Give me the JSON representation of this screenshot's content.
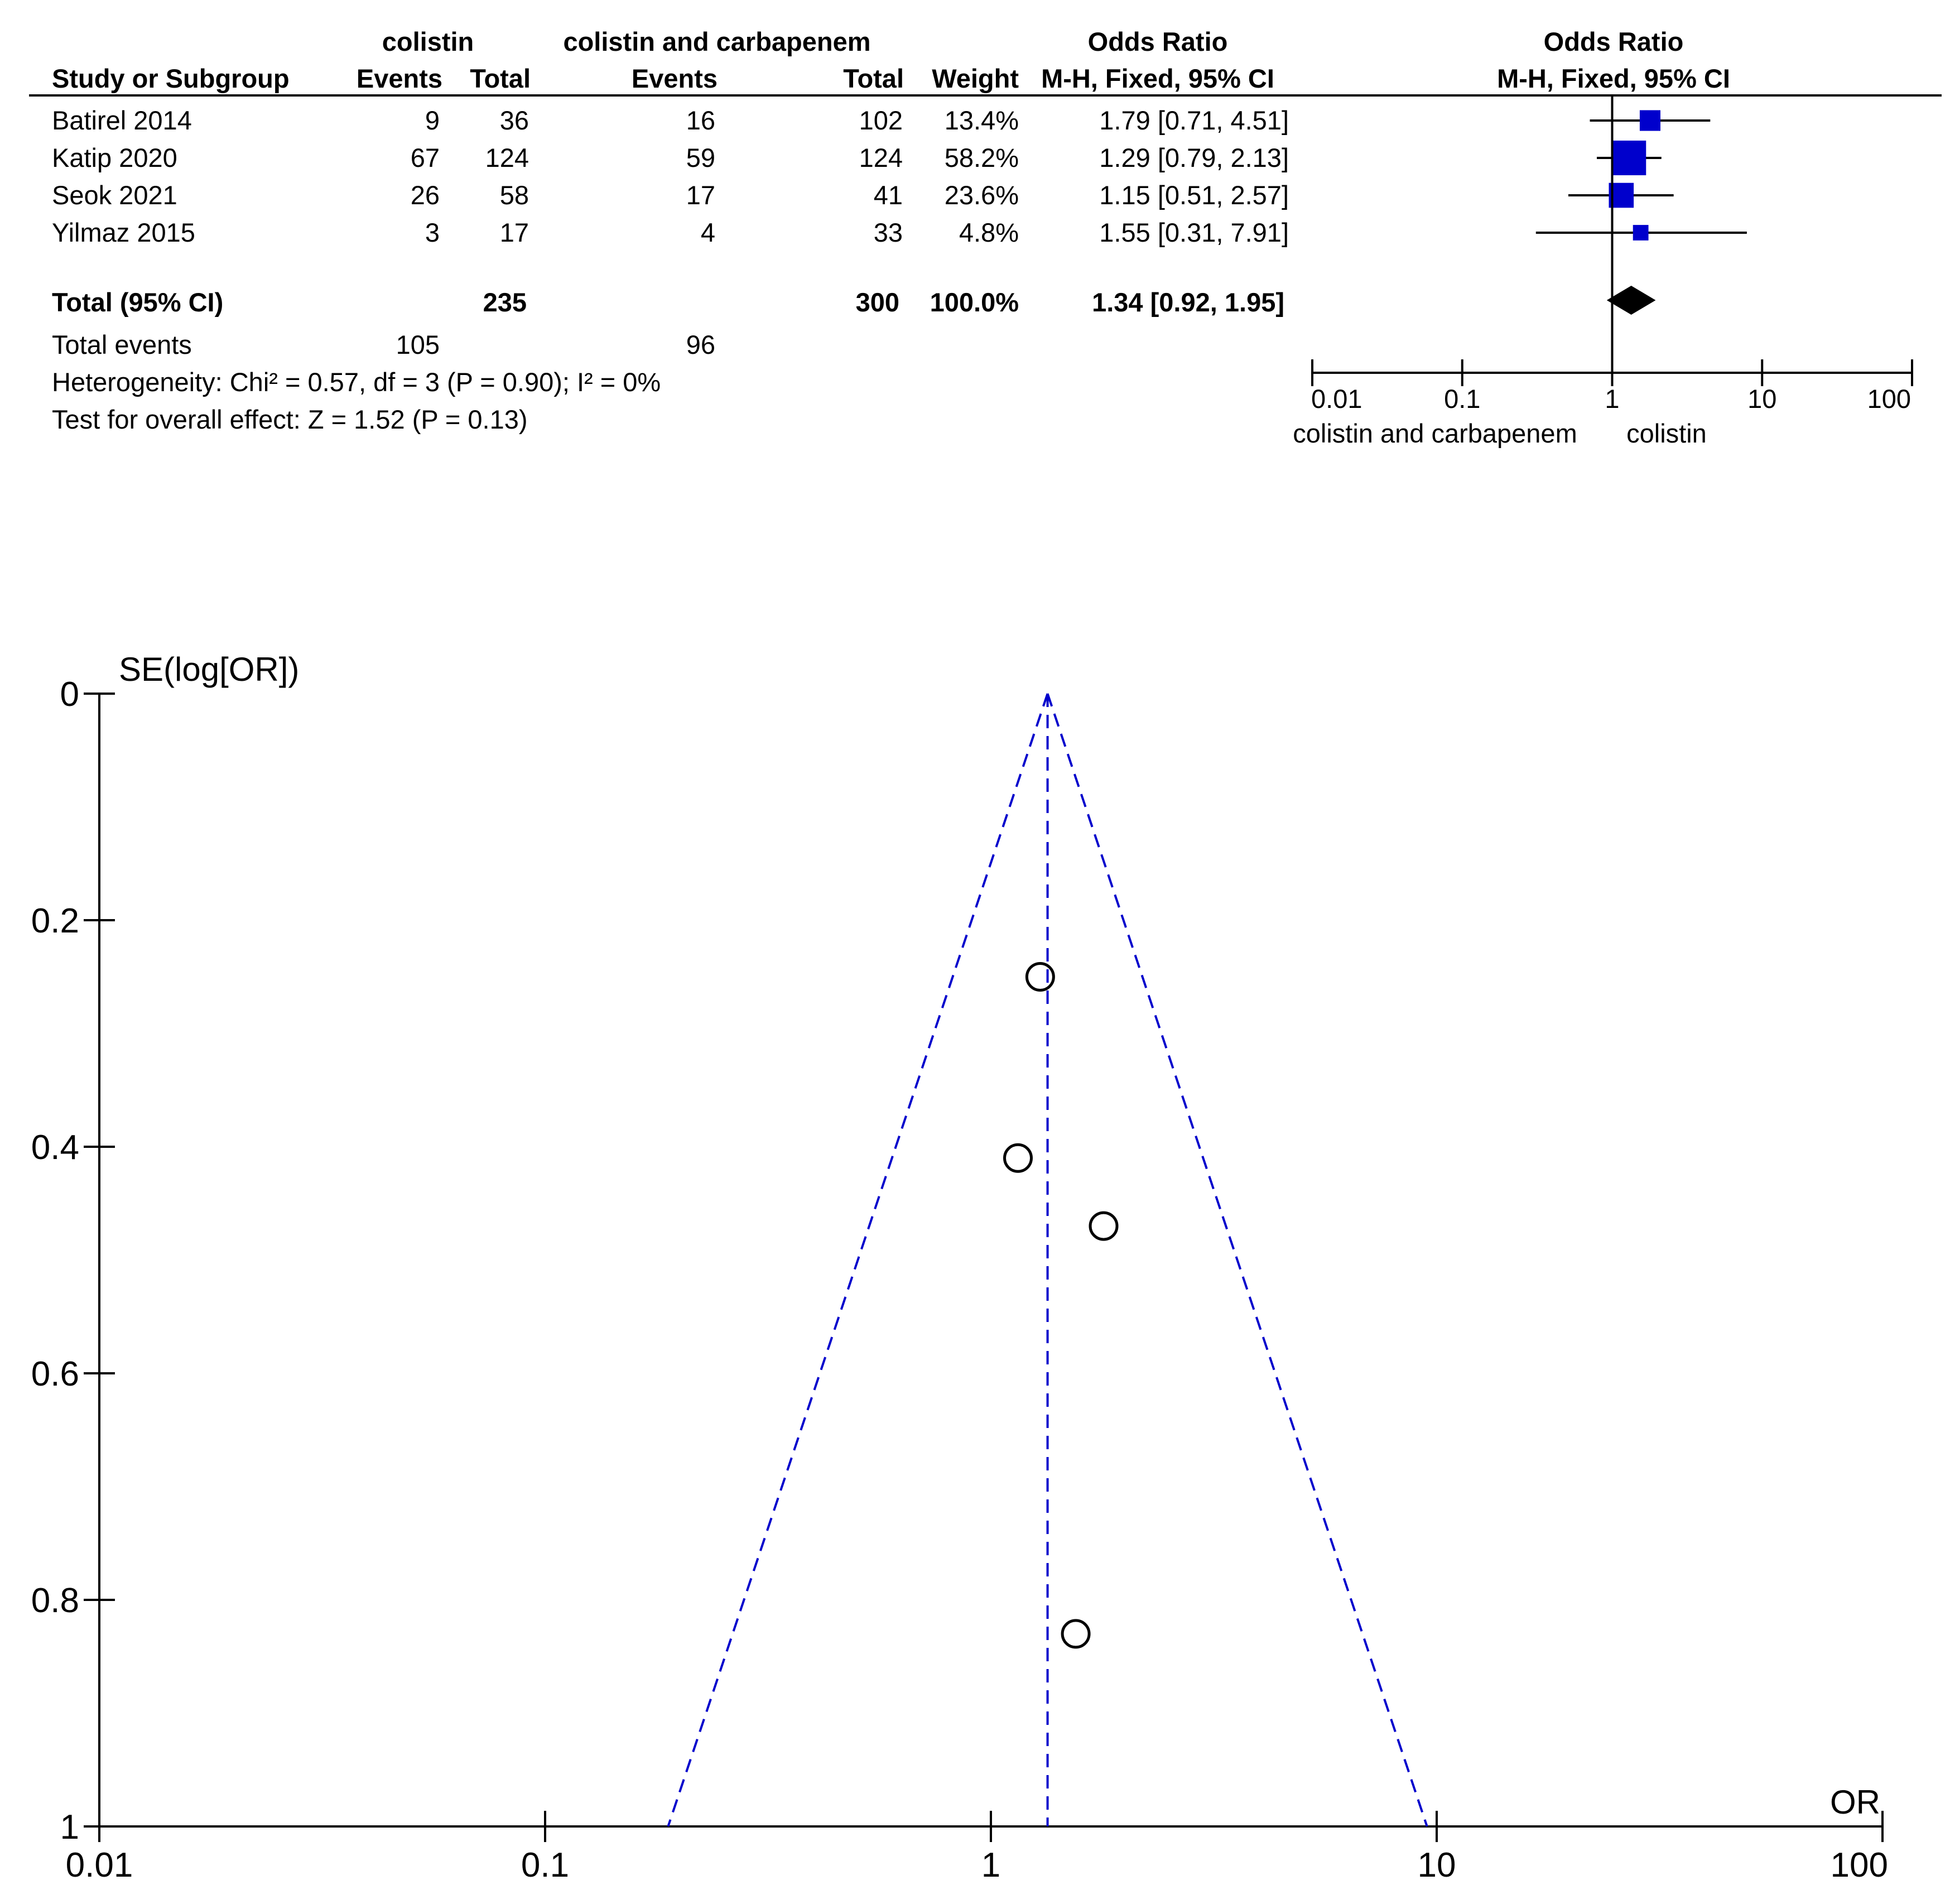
{
  "chart_data": [
    {
      "type": "table",
      "header": {
        "group_exp": "colistin",
        "group_ctl": "colistin and carbapenem",
        "or_col": "Odds Ratio",
        "or_plot": "Odds Ratio",
        "study": "Study or Subgroup",
        "events_exp": "Events",
        "total_exp": "Total",
        "events_ctl": "Events",
        "total_ctl": "Total",
        "weight": "Weight",
        "method_col": "M-H, Fixed, 95% CI",
        "method_plot": "M-H, Fixed, 95% CI"
      },
      "rows": [
        {
          "study": "Batirel 2014",
          "events_exp": "9",
          "total_exp": "36",
          "events_ctl": "16",
          "total_ctl": "102",
          "weight": "13.4%",
          "ci_text": "1.79 [0.71, 4.51]",
          "or": 1.79,
          "lo": 0.71,
          "hi": 4.51,
          "w": 13.4
        },
        {
          "study": "Katip 2020",
          "events_exp": "67",
          "total_exp": "124",
          "events_ctl": "59",
          "total_ctl": "124",
          "weight": "58.2%",
          "ci_text": "1.29 [0.79, 2.13]",
          "or": 1.29,
          "lo": 0.79,
          "hi": 2.13,
          "w": 58.2
        },
        {
          "study": "Seok 2021",
          "events_exp": "26",
          "total_exp": "58",
          "events_ctl": "17",
          "total_ctl": "41",
          "weight": "23.6%",
          "ci_text": "1.15 [0.51, 2.57]",
          "or": 1.15,
          "lo": 0.51,
          "hi": 2.57,
          "w": 23.6
        },
        {
          "study": "Yilmaz 2015",
          "events_exp": "3",
          "total_exp": "17",
          "events_ctl": "4",
          "total_ctl": "33",
          "weight": "4.8%",
          "ci_text": "1.55 [0.31, 7.91]",
          "or": 1.55,
          "lo": 0.31,
          "hi": 7.91,
          "w": 4.8
        }
      ],
      "total": {
        "label": "Total (95% CI)",
        "total_exp": "235",
        "total_ctl": "300",
        "weight": "100.0%",
        "ci_text": "1.34 [0.92, 1.95]",
        "or": 1.34,
        "lo": 0.92,
        "hi": 1.95
      },
      "total_events": {
        "label": "Total events",
        "exp": "105",
        "ctl": "96"
      },
      "heterogeneity": "Heterogeneity: Chi² = 0.57, df = 3 (P = 0.90); I² = 0%",
      "overall_effect": "Test for overall effect: Z = 1.52 (P = 0.13)",
      "axis": {
        "scale": "log",
        "ticks": [
          0.01,
          0.1,
          1,
          10,
          100
        ],
        "tick_labels": [
          "0.01",
          "0.1",
          "1",
          "10",
          "100"
        ]
      },
      "favours_left": "colistin and carbapenem",
      "favours_right": "colistin",
      "colors": {
        "marker": "#0000cc",
        "diamond": "#000000"
      }
    },
    {
      "type": "scatter",
      "title": "",
      "xlabel": "OR",
      "ylabel": "SE(log[OR])",
      "x_scale": "log",
      "xlim": [
        0.01,
        100
      ],
      "ylim": [
        0,
        1
      ],
      "y_inverted": true,
      "x_ticks": [
        0.01,
        0.1,
        1,
        10,
        100
      ],
      "x_tick_labels": [
        "0.01",
        "0.1",
        "1",
        "10",
        "100"
      ],
      "y_ticks": [
        0,
        0.2,
        0.4,
        0.6,
        0.8,
        1
      ],
      "y_tick_labels": [
        "0",
        "0.2",
        "0.4",
        "0.6",
        "0.8",
        "1"
      ],
      "points": [
        {
          "x": 1.29,
          "y": 0.25
        },
        {
          "x": 1.15,
          "y": 0.41
        },
        {
          "x": 1.79,
          "y": 0.47
        },
        {
          "x": 1.55,
          "y": 0.83
        }
      ],
      "pooled_or": 1.34,
      "funnel_color": "#0000cc",
      "grid": false
    }
  ]
}
